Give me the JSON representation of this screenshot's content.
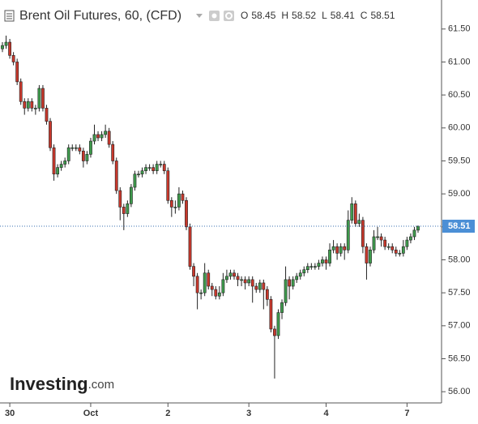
{
  "chart_data": {
    "type": "candlestick",
    "title": "Brent Oil Futures, 60, (CFD)",
    "ohlc_labels": [
      "O",
      "H",
      "L",
      "C"
    ],
    "watermark": [
      "Investing",
      ".com"
    ],
    "categories": [
      null,
      null,
      "30",
      null,
      null,
      null,
      null,
      null,
      null,
      null,
      null,
      null,
      null,
      null,
      null,
      null,
      null,
      null,
      null,
      null,
      null,
      null,
      null,
      null,
      "Oct",
      null,
      null,
      null,
      null,
      null,
      null,
      null,
      null,
      null,
      null,
      null,
      null,
      null,
      null,
      null,
      null,
      null,
      null,
      null,
      null,
      "2",
      null,
      null,
      null,
      null,
      null,
      null,
      null,
      null,
      null,
      null,
      null,
      null,
      null,
      null,
      null,
      null,
      null,
      null,
      null,
      null,
      null,
      "3",
      null,
      null,
      null,
      null,
      null,
      null,
      null,
      null,
      null,
      null,
      null,
      null,
      null,
      null,
      null,
      null,
      null,
      null,
      null,
      null,
      "4",
      null,
      null,
      null,
      null,
      null,
      null,
      null,
      null,
      null,
      null,
      null,
      null,
      null,
      null,
      null,
      null,
      null,
      null,
      null,
      null,
      null,
      "7",
      null,
      null,
      null
    ],
    "open": [
      61.2,
      61.25,
      61.3,
      61.1,
      61.0,
      60.7,
      60.4,
      60.3,
      60.4,
      60.3,
      60.3,
      60.6,
      60.3,
      60.1,
      59.7,
      59.3,
      59.4,
      59.45,
      59.5,
      59.7,
      59.7,
      59.7,
      59.65,
      59.5,
      59.6,
      59.8,
      59.9,
      59.85,
      59.9,
      59.95,
      59.75,
      59.5,
      59.05,
      58.8,
      58.7,
      58.85,
      59.1,
      59.3,
      59.3,
      59.35,
      59.4,
      59.4,
      59.35,
      59.45,
      59.45,
      59.35,
      58.9,
      58.8,
      58.8,
      59.0,
      58.9,
      58.5,
      57.9,
      57.75,
      57.5,
      57.5,
      57.8,
      57.6,
      57.55,
      57.45,
      57.5,
      57.7,
      57.75,
      57.8,
      57.75,
      57.7,
      57.7,
      57.65,
      57.7,
      57.6,
      57.55,
      57.65,
      57.55,
      57.4,
      56.95,
      56.85,
      57.2,
      57.35,
      57.7,
      57.6,
      57.7,
      57.75,
      57.8,
      57.85,
      57.9,
      57.9,
      57.9,
      57.95,
      58.0,
      57.95,
      58.15,
      58.2,
      58.1,
      58.2,
      58.15,
      58.6,
      58.85,
      58.55,
      58.6,
      58.2,
      57.95,
      58.15,
      58.35,
      58.35,
      58.3,
      58.2,
      58.2,
      58.15,
      58.1,
      58.1,
      58.2,
      58.3,
      58.35,
      58.45
    ],
    "high": [
      61.3,
      61.4,
      61.35,
      61.15,
      61.05,
      60.75,
      60.45,
      60.45,
      60.45,
      60.35,
      60.65,
      60.65,
      60.35,
      60.15,
      59.75,
      59.45,
      59.5,
      59.55,
      59.75,
      59.75,
      59.75,
      59.75,
      59.7,
      59.65,
      59.85,
      60.05,
      59.95,
      59.95,
      60.05,
      60.0,
      59.8,
      59.55,
      59.1,
      58.85,
      58.9,
      59.15,
      59.35,
      59.35,
      59.4,
      59.45,
      59.45,
      59.45,
      59.5,
      59.5,
      59.5,
      59.4,
      58.95,
      58.9,
      59.1,
      59.05,
      58.95,
      58.55,
      57.95,
      57.8,
      57.55,
      57.95,
      57.85,
      57.65,
      57.6,
      57.6,
      57.8,
      57.85,
      57.85,
      57.85,
      57.8,
      57.75,
      57.75,
      57.75,
      57.75,
      57.65,
      57.7,
      57.7,
      57.6,
      57.45,
      57.0,
      57.25,
      57.4,
      57.9,
      57.75,
      57.75,
      57.8,
      57.85,
      57.9,
      57.95,
      57.95,
      57.95,
      58.0,
      58.05,
      58.05,
      58.25,
      58.3,
      58.25,
      58.25,
      58.25,
      58.75,
      58.95,
      58.9,
      58.7,
      58.65,
      58.25,
      58.2,
      58.45,
      58.5,
      58.4,
      58.35,
      58.25,
      58.25,
      58.2,
      58.15,
      58.3,
      58.35,
      58.4,
      58.5,
      58.52
    ],
    "low": [
      61.15,
      61.2,
      61.05,
      60.95,
      60.65,
      60.35,
      60.2,
      60.25,
      60.25,
      60.2,
      60.25,
      60.25,
      60.05,
      59.65,
      59.2,
      59.25,
      59.35,
      59.4,
      59.45,
      59.65,
      59.65,
      59.6,
      59.4,
      59.45,
      59.55,
      59.75,
      59.8,
      59.8,
      59.85,
      59.7,
      59.45,
      59.0,
      58.6,
      58.45,
      58.65,
      58.8,
      59.05,
      59.25,
      59.25,
      59.3,
      59.35,
      59.3,
      59.3,
      59.4,
      59.3,
      58.85,
      58.65,
      58.7,
      58.75,
      58.85,
      58.45,
      57.85,
      57.6,
      57.25,
      57.4,
      57.45,
      57.55,
      57.45,
      57.4,
      57.4,
      57.45,
      57.65,
      57.7,
      57.7,
      57.6,
      57.6,
      57.55,
      57.6,
      57.35,
      57.5,
      57.5,
      57.25,
      57.3,
      56.9,
      56.2,
      56.8,
      57.1,
      57.3,
      57.4,
      57.55,
      57.65,
      57.7,
      57.75,
      57.8,
      57.85,
      57.85,
      57.85,
      57.9,
      57.85,
      57.9,
      58.1,
      58.0,
      58.05,
      58.0,
      58.1,
      58.55,
      58.5,
      58.5,
      58.1,
      57.7,
      57.9,
      58.1,
      58.3,
      58.2,
      58.15,
      58.15,
      58.1,
      58.05,
      58.05,
      58.05,
      58.15,
      58.25,
      58.3,
      58.41
    ],
    "close": [
      61.25,
      61.3,
      61.1,
      61.0,
      60.7,
      60.4,
      60.3,
      60.4,
      60.3,
      60.3,
      60.6,
      60.3,
      60.1,
      59.7,
      59.3,
      59.4,
      59.45,
      59.5,
      59.7,
      59.7,
      59.7,
      59.65,
      59.5,
      59.6,
      59.8,
      59.9,
      59.85,
      59.9,
      59.95,
      59.75,
      59.5,
      59.05,
      58.8,
      58.7,
      58.85,
      59.1,
      59.3,
      59.3,
      59.35,
      59.4,
      59.4,
      59.35,
      59.45,
      59.45,
      59.35,
      58.9,
      58.8,
      58.8,
      59.0,
      58.9,
      58.5,
      57.9,
      57.75,
      57.5,
      57.5,
      57.8,
      57.6,
      57.55,
      57.45,
      57.5,
      57.7,
      57.75,
      57.8,
      57.75,
      57.7,
      57.7,
      57.65,
      57.7,
      57.6,
      57.55,
      57.65,
      57.55,
      57.4,
      56.95,
      56.85,
      57.2,
      57.35,
      57.7,
      57.6,
      57.7,
      57.75,
      57.8,
      57.85,
      57.9,
      57.9,
      57.9,
      57.95,
      58.0,
      57.95,
      58.15,
      58.2,
      58.1,
      58.2,
      58.15,
      58.6,
      58.85,
      58.55,
      58.6,
      58.2,
      57.95,
      58.15,
      58.35,
      58.35,
      58.3,
      58.2,
      58.2,
      58.15,
      58.1,
      58.1,
      58.2,
      58.3,
      58.35,
      58.45,
      58.51
    ],
    "up_color": "#3f9b4d",
    "down_color": "#c8382c",
    "ylim": [
      55.83,
      61.94
    ],
    "yticks": [
      {
        "value": 56,
        "label": "56.00"
      },
      {
        "value": 56.5,
        "label": "56.50"
      },
      {
        "value": 57,
        "label": "57.00"
      },
      {
        "value": 57.5,
        "label": "57.50"
      },
      {
        "value": 58,
        "label": "58.00"
      },
      {
        "value": 58.5,
        "label": "58.50"
      },
      {
        "value": 59,
        "label": "59.00"
      },
      {
        "value": 59.5,
        "label": "59.50"
      },
      {
        "value": 60,
        "label": "60.00"
      },
      {
        "value": 60.5,
        "label": "60.50"
      },
      {
        "value": 61,
        "label": "61.00"
      },
      {
        "value": 61.5,
        "label": "61.50"
      }
    ],
    "grid": false
  }
}
